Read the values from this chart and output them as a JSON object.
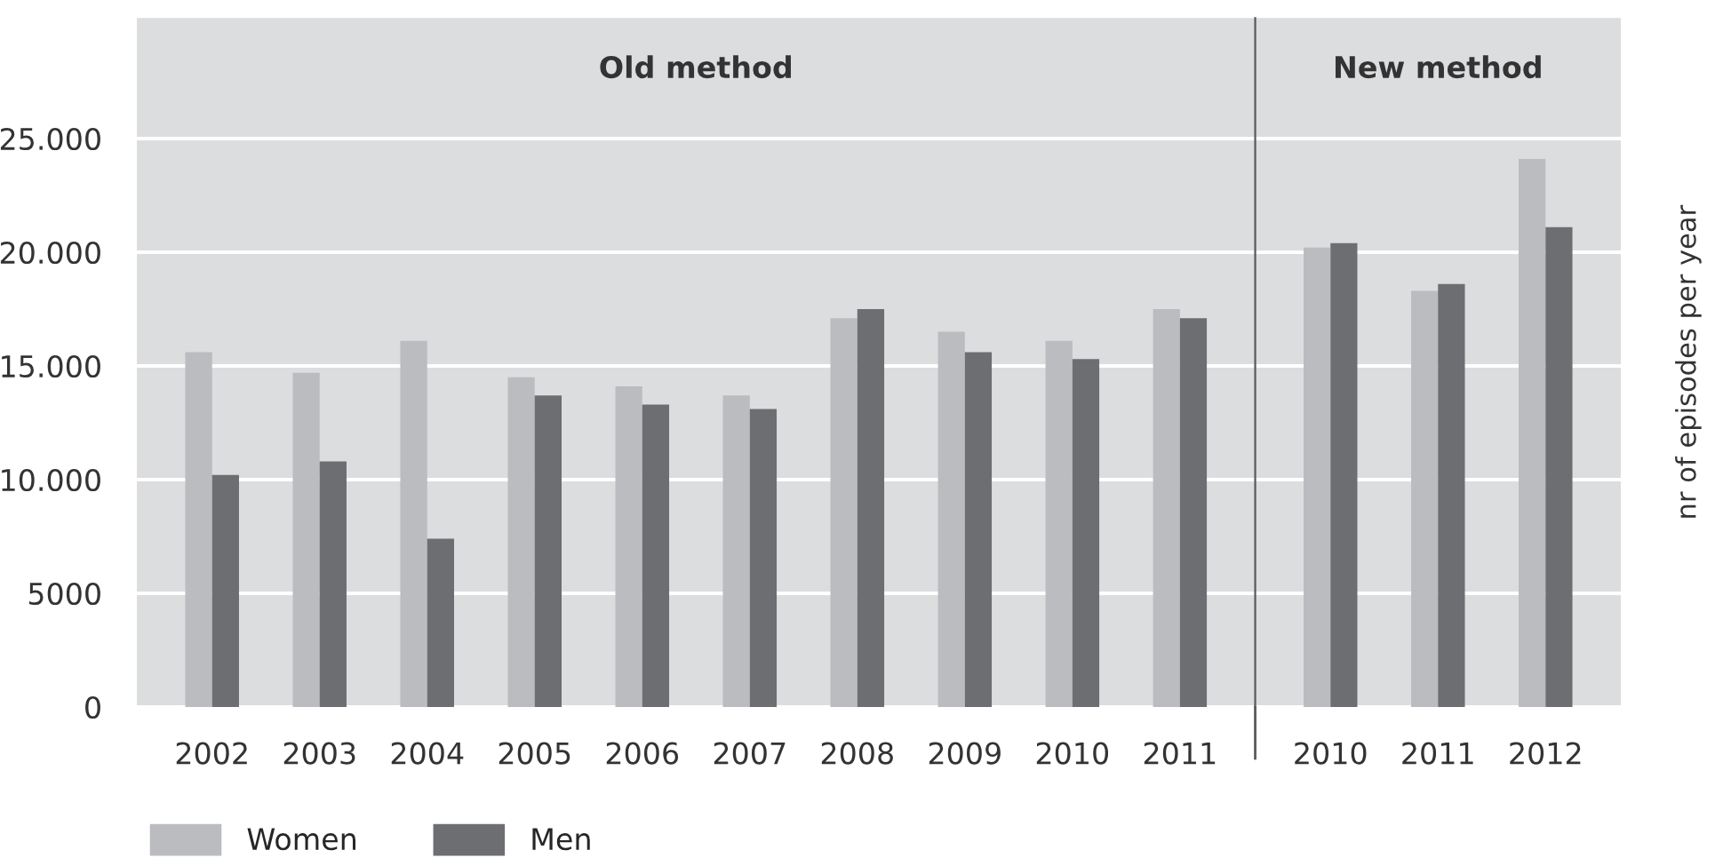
{
  "chart_data": [
    {
      "type": "bar",
      "title": "Old method",
      "categories": [
        "2002",
        "2003",
        "2004",
        "2005",
        "2006",
        "2007",
        "2008",
        "2009",
        "2010",
        "2011"
      ],
      "series": [
        {
          "name": "Women",
          "color": "#bbbcc0",
          "values": [
            15600,
            14700,
            16100,
            14500,
            14100,
            13700,
            17100,
            16500,
            16100,
            17500
          ]
        },
        {
          "name": "Men",
          "color": "#6d6e72",
          "values": [
            10200,
            10800,
            7400,
            13700,
            13300,
            13100,
            17500,
            15600,
            15300,
            17100
          ]
        }
      ],
      "ylim": [
        0,
        30300
      ],
      "yticks": [
        0,
        {
          "value": 5000,
          "label": "5000"
        },
        {
          "value": 10000,
          "label": "10.000"
        },
        {
          "value": 15000,
          "label": "15.000"
        },
        {
          "value": 20000,
          "label": "20.000"
        },
        {
          "value": 25000,
          "label": "25.000"
        }
      ],
      "grid": "y",
      "legend": "bottom left"
    },
    {
      "type": "bar",
      "title": "New method",
      "categories": [
        "2010",
        "2011",
        "2012"
      ],
      "series": [
        {
          "color": "#bbbcc0",
          "values": [
            20200,
            18300,
            24100
          ]
        },
        {
          "color": "#6d6e72",
          "values": [
            20400,
            18600,
            21100
          ]
        }
      ],
      "ylabel": "nr of episodes per year",
      "ylim": [
        0,
        30300
      ],
      "yticks": [
        0,
        5000,
        10000,
        15000,
        20000,
        25000
      ],
      "tick_labels": "x",
      "grid": "y"
    }
  ]
}
